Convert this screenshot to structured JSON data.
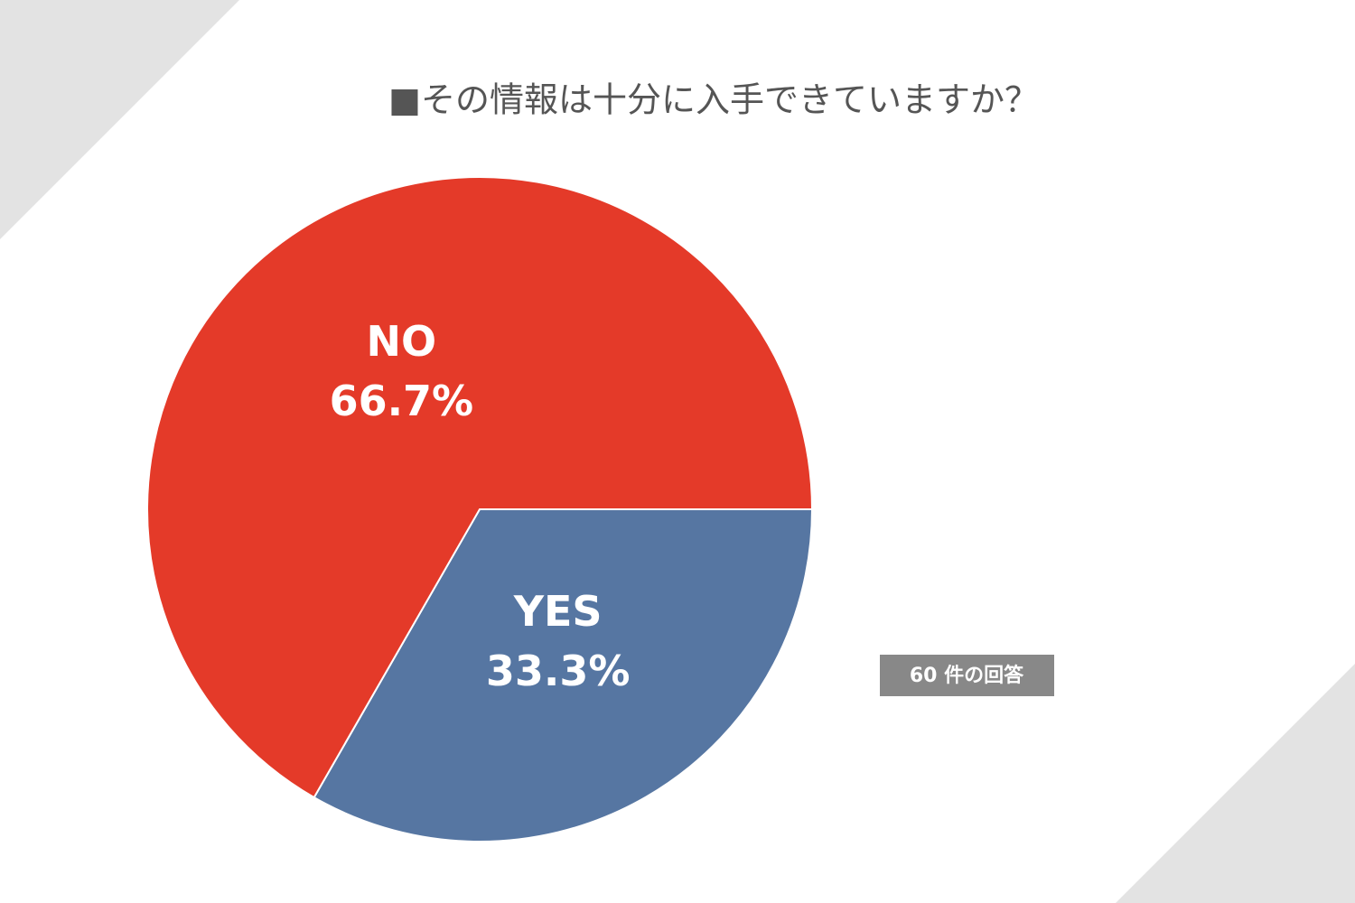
{
  "chart_data": {
    "type": "pie",
    "title": "■その情報は十分に入手できていますか？",
    "categories": [
      "YES",
      "NO"
    ],
    "values": [
      33.3,
      66.7
    ],
    "value_labels": [
      "33.3%",
      "66.7%"
    ],
    "colors": [
      "#5676a2",
      "#e43a29"
    ],
    "note": "60 件の回答"
  }
}
